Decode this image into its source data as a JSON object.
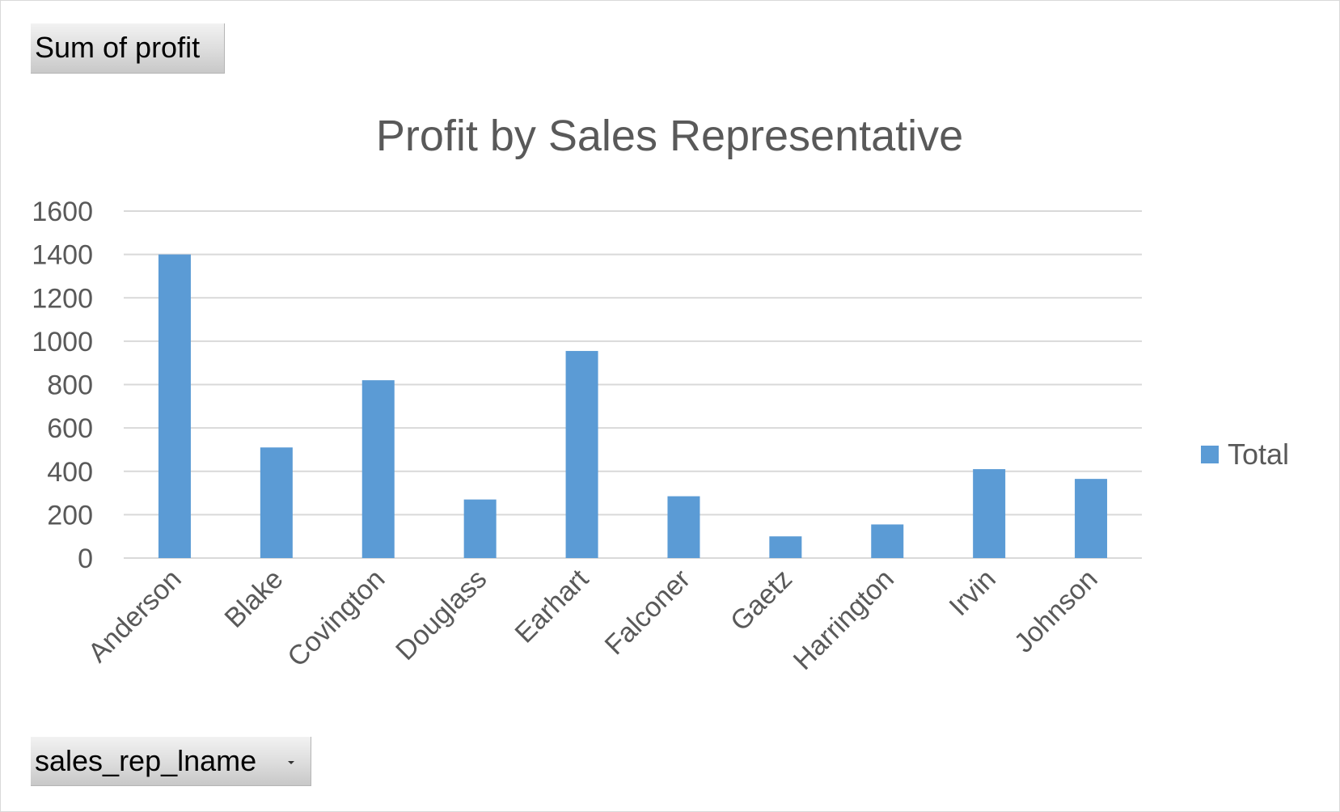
{
  "pivot": {
    "value_field_label": "Sum of profit",
    "axis_field_label": "sales_rep_lname"
  },
  "colors": {
    "bar": "#5b9bd5",
    "text": "#595959",
    "grid": "#d9d9d9"
  },
  "chart_data": {
    "type": "bar",
    "title": "Profit by Sales Representative",
    "xlabel": "",
    "ylabel": "",
    "categories": [
      "Anderson",
      "Blake",
      "Covington",
      "Douglass",
      "Earhart",
      "Falconer",
      "Gaetz",
      "Harrington",
      "Irvin",
      "Johnson"
    ],
    "series": [
      {
        "name": "Total",
        "values": [
          1400,
          510,
          820,
          270,
          955,
          285,
          100,
          155,
          410,
          365
        ]
      }
    ],
    "ylim": [
      0,
      1600
    ],
    "yticks": [
      0,
      200,
      400,
      600,
      800,
      1000,
      1200,
      1400,
      1600
    ],
    "ytick_labels": [
      "0",
      "200",
      "400",
      "600",
      "800",
      "1000",
      "1200",
      "1400",
      "1600"
    ],
    "grid": true,
    "legend_position": "right",
    "legend_icon": "square-swatch"
  }
}
